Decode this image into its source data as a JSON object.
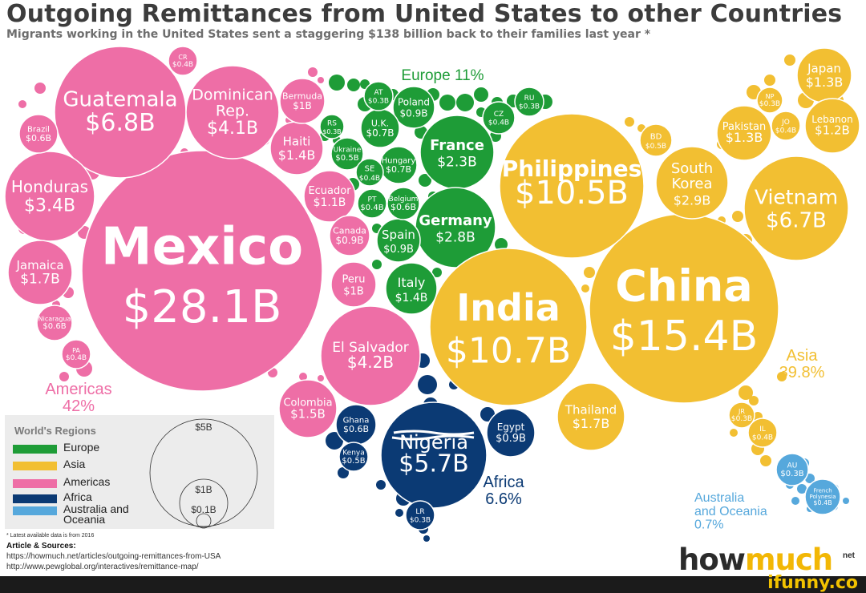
{
  "header": {
    "title": "Outgoing Remittances from United States to other Countries",
    "subtitle": "Migrants working in the United States sent a staggering $138 billion back to their families last year *"
  },
  "colors": {
    "europe": "#1e9c37",
    "asia": "#f2bf32",
    "americas": "#ee6ea6",
    "africa": "#0b3a74",
    "oceania": "#56a8dc"
  },
  "regions": [
    {
      "id": "americas",
      "name": "Americas",
      "share": "42%"
    },
    {
      "id": "europe",
      "name": "Europe 11%",
      "share": ""
    },
    {
      "id": "asia",
      "name": "Asia",
      "share": "39.8%"
    },
    {
      "id": "africa",
      "name": "Africa",
      "share": "6.6%"
    },
    {
      "id": "oceania",
      "name": "Australia\nand Oceania",
      "share": "0.7%"
    }
  ],
  "countries": [
    {
      "name": "Mexico",
      "value": "$28.1B",
      "region": "americas"
    },
    {
      "name": "Guatemala",
      "value": "$6.8B",
      "region": "americas"
    },
    {
      "name": "Dominican\nRep.",
      "value": "$4.1B",
      "region": "americas"
    },
    {
      "name": "Honduras",
      "value": "$3.4B",
      "region": "americas"
    },
    {
      "name": "El Salvador",
      "value": "$4.2B",
      "region": "americas"
    },
    {
      "name": "Jamaica",
      "value": "$1.7B",
      "region": "americas"
    },
    {
      "name": "Haiti",
      "value": "$1.4B",
      "region": "americas"
    },
    {
      "name": "Ecuador",
      "value": "$1.1B",
      "region": "americas"
    },
    {
      "name": "Colombia",
      "value": "$1.5B",
      "region": "americas"
    },
    {
      "name": "Peru",
      "value": "$1B",
      "region": "americas"
    },
    {
      "name": "Canada",
      "value": "$0.9B",
      "region": "americas"
    },
    {
      "name": "Bermuda",
      "value": "$1B",
      "region": "americas"
    },
    {
      "name": "Brazil",
      "value": "$0.6B",
      "region": "americas"
    },
    {
      "name": "Nicaragua",
      "value": "$0.6B",
      "region": "americas"
    },
    {
      "name": "PA",
      "value": "$0.4B",
      "region": "americas"
    },
    {
      "name": "CR",
      "value": "$0.4B",
      "region": "americas"
    },
    {
      "name": "France",
      "value": "$2.3B",
      "region": "europe"
    },
    {
      "name": "Germany",
      "value": "$2.8B",
      "region": "europe"
    },
    {
      "name": "Italy",
      "value": "$1.4B",
      "region": "europe"
    },
    {
      "name": "Spain",
      "value": "$0.9B",
      "region": "europe"
    },
    {
      "name": "Poland",
      "value": "$0.9B",
      "region": "europe"
    },
    {
      "name": "U.K.",
      "value": "$0.7B",
      "region": "europe"
    },
    {
      "name": "Hungary",
      "value": "$0.7B",
      "region": "europe"
    },
    {
      "name": "Belgium",
      "value": "$0.6B",
      "region": "europe"
    },
    {
      "name": "Ukraine",
      "value": "$0.5B",
      "region": "europe"
    },
    {
      "name": "PT",
      "value": "$0.4B",
      "region": "europe"
    },
    {
      "name": "SE",
      "value": "$0.4B",
      "region": "europe"
    },
    {
      "name": "CZ",
      "value": "$0.4B",
      "region": "europe"
    },
    {
      "name": "AT",
      "value": "$0.3B",
      "region": "europe"
    },
    {
      "name": "RS",
      "value": "$0.3B",
      "region": "europe"
    },
    {
      "name": "RU",
      "value": "$0.3B",
      "region": "europe"
    },
    {
      "name": "China",
      "value": "$15.4B",
      "region": "asia"
    },
    {
      "name": "India",
      "value": "$10.7B",
      "region": "asia"
    },
    {
      "name": "Philippines",
      "value": "$10.5B",
      "region": "asia"
    },
    {
      "name": "Vietnam",
      "value": "$6.7B",
      "region": "asia"
    },
    {
      "name": "South\nKorea",
      "value": "$2.9B",
      "region": "asia"
    },
    {
      "name": "Thailand",
      "value": "$1.7B",
      "region": "asia"
    },
    {
      "name": "Japan",
      "value": "$1.3B",
      "region": "asia"
    },
    {
      "name": "Pakistan",
      "value": "$1.3B",
      "region": "asia"
    },
    {
      "name": "Lebanon",
      "value": "$1.2B",
      "region": "asia"
    },
    {
      "name": "BD",
      "value": "$0.5B",
      "region": "asia"
    },
    {
      "name": "JO",
      "value": "$0.4B",
      "region": "asia"
    },
    {
      "name": "IL",
      "value": "$0.4B",
      "region": "asia"
    },
    {
      "name": "NP",
      "value": "$0.3B",
      "region": "asia"
    },
    {
      "name": "JR",
      "value": "$0.3B",
      "region": "asia"
    },
    {
      "name": "Nigeria",
      "value": "$5.7B",
      "region": "africa"
    },
    {
      "name": "Egypt",
      "value": "$0.9B",
      "region": "africa"
    },
    {
      "name": "Ghana",
      "value": "$0.6B",
      "region": "africa"
    },
    {
      "name": "Kenya",
      "value": "$0.5B",
      "region": "africa"
    },
    {
      "name": "LR",
      "value": "$0.3B",
      "region": "africa"
    },
    {
      "name": "AU",
      "value": "$0.3B",
      "region": "oceania"
    },
    {
      "name": "French\nPolynesia",
      "value": "$0.4B",
      "region": "oceania"
    }
  ],
  "legend": {
    "title": "World's Regions",
    "items": [
      {
        "label": "Europe",
        "color": "#1e9c37"
      },
      {
        "label": "Asia",
        "color": "#f2bf32"
      },
      {
        "label": "Americas",
        "color": "#ee6ea6"
      },
      {
        "label": "Africa",
        "color": "#0b3a74"
      },
      {
        "label": "Australia and\nOceania",
        "color": "#56a8dc"
      }
    ],
    "scale": [
      "$5B",
      "$1B",
      "$0.1B"
    ]
  },
  "footer": {
    "footnote": "* Latest available data is from 2016",
    "sources_title": "Article & Sources:",
    "sources": [
      "https://howmuch.net/articles/outgoing-remittances-from-USA",
      "http://www.pewglobal.org/interactives/remittance-map/"
    ],
    "logo_part1": "how",
    "logo_part2": "much",
    "logo_suffix": "net",
    "watermark": "ifunny.co"
  }
}
